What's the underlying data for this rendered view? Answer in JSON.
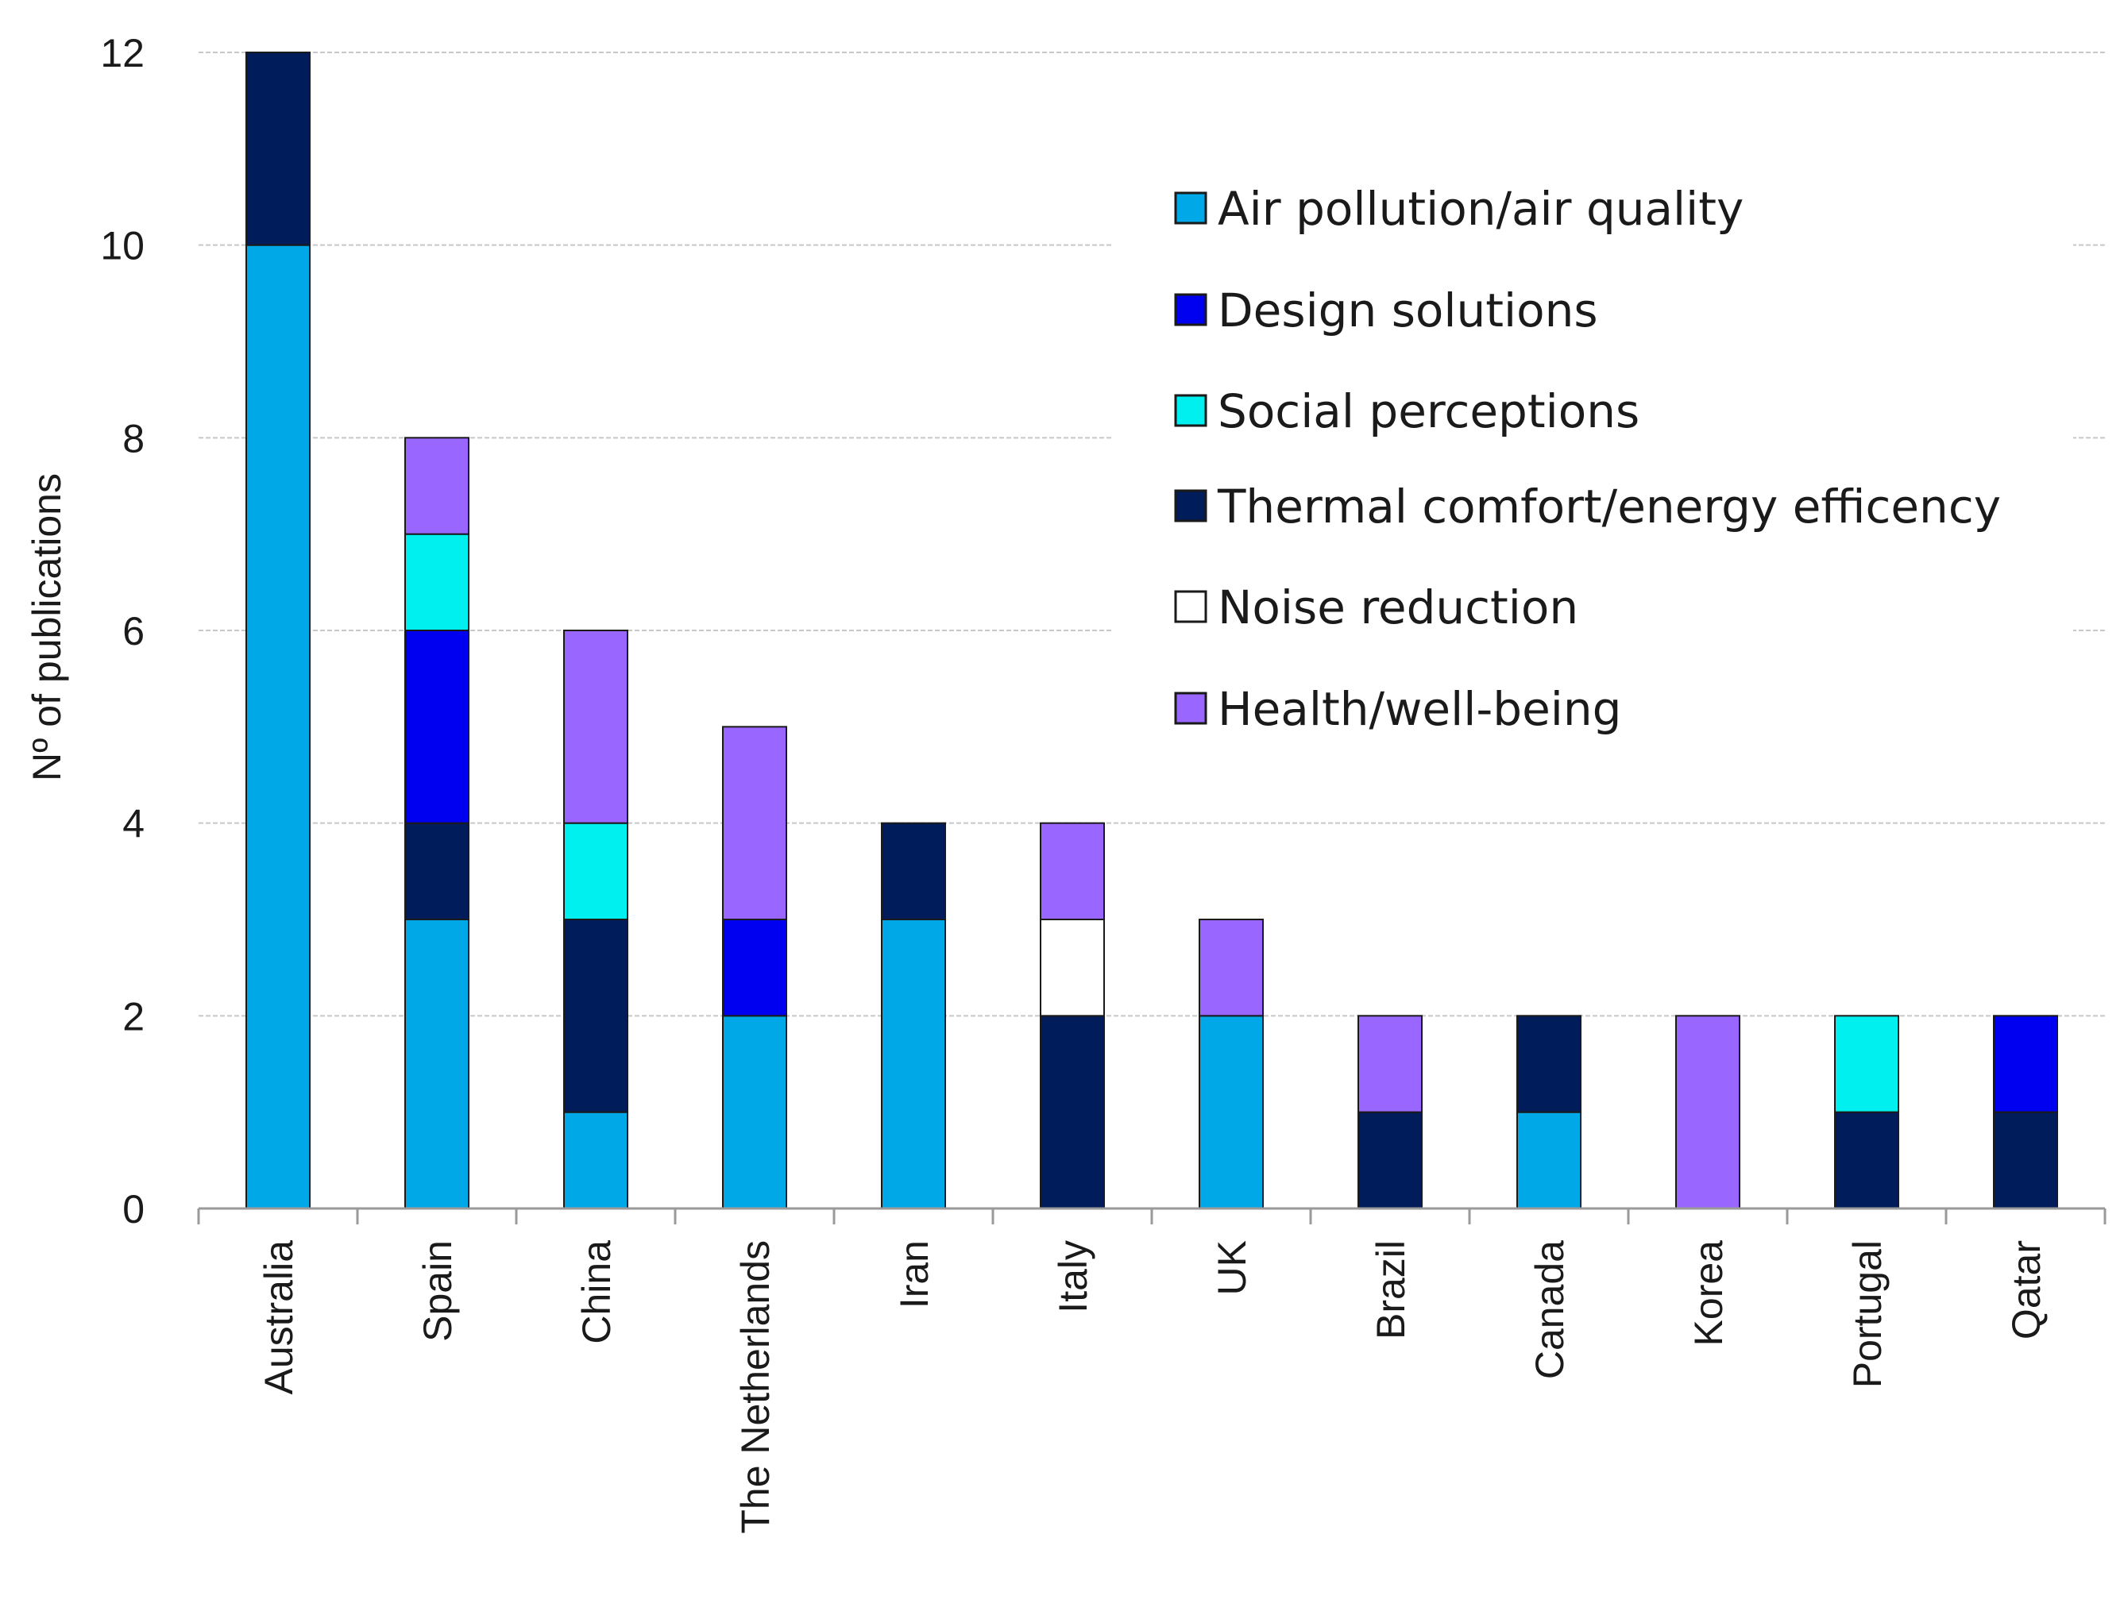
{
  "chart_data": {
    "type": "bar",
    "stacked": true,
    "title": "",
    "xlabel": "",
    "ylabel": "Nº of publications",
    "ylim": [
      0,
      12
    ],
    "yticks": [
      0,
      2,
      4,
      6,
      8,
      10,
      12
    ],
    "grid": true,
    "legend_position": "top-right",
    "categories": [
      "Australia",
      "Spain",
      "China",
      "The Netherlands",
      "Iran",
      "Italy",
      "UK",
      "Brazil",
      "Canada",
      "Korea",
      "Portugal",
      "Qatar"
    ],
    "series": [
      {
        "name": "Air pollution/air quality",
        "color": "#00A8E8",
        "values": [
          10,
          3,
          1,
          2,
          3,
          0,
          2,
          0,
          1,
          0,
          0,
          0
        ]
      },
      {
        "name": "Thermal comfort/energy efficency",
        "color": "#001C5A",
        "values": [
          2,
          1,
          2,
          0,
          1,
          2,
          0,
          1,
          1,
          0,
          1,
          1
        ]
      },
      {
        "name": "Design solutions",
        "color": "#0000F0",
        "values": [
          0,
          2,
          0,
          1,
          0,
          0,
          0,
          0,
          0,
          0,
          0,
          1
        ]
      },
      {
        "name": "Noise reduction",
        "color": "#FFFFFF",
        "values": [
          0,
          0,
          0,
          0,
          0,
          1,
          0,
          0,
          0,
          0,
          0,
          0
        ]
      },
      {
        "name": "Social perceptions",
        "color": "#00F0F0",
        "values": [
          0,
          1,
          1,
          0,
          0,
          0,
          0,
          0,
          0,
          0,
          1,
          0
        ]
      },
      {
        "name": "Health/well-being",
        "color": "#9966FF",
        "values": [
          0,
          1,
          2,
          2,
          0,
          1,
          1,
          1,
          0,
          2,
          0,
          0
        ]
      }
    ],
    "legend_order": [
      "Air pollution/air quality",
      "Design solutions",
      "Social perceptions",
      "Thermal comfort/energy efficency",
      "Noise reduction",
      "Health/well-being"
    ]
  }
}
